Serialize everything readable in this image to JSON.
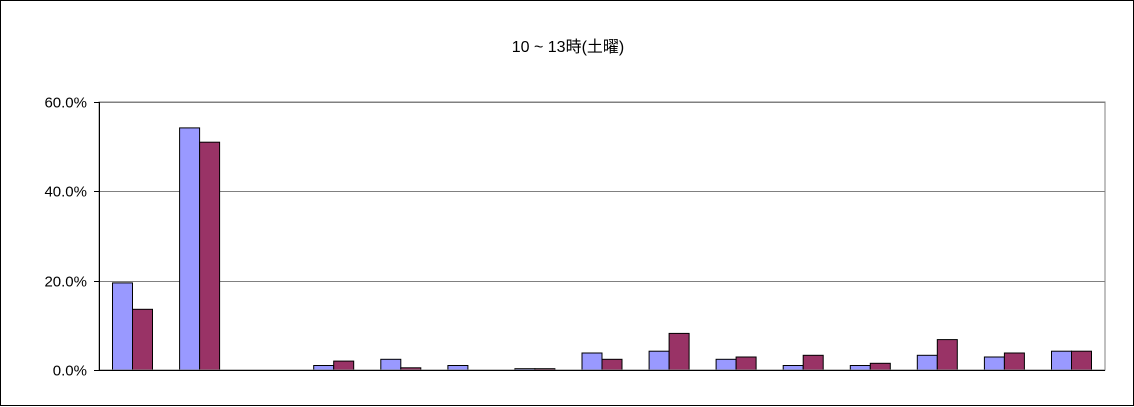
{
  "chart_data": {
    "type": "bar",
    "title": "10 ~ 13時(土曜)",
    "xlabel": "",
    "ylabel": "",
    "ylim": [
      0,
      60
    ],
    "yticks": [
      "0.0%",
      "20.0%",
      "40.0%",
      "60.0%"
    ],
    "ytick_values": [
      0,
      20,
      40,
      60
    ],
    "grid": true,
    "legend": "none",
    "categories": [
      "",
      "",
      "",
      "",
      "",
      "",
      "",
      "",
      "",
      "",
      "",
      "",
      "",
      "",
      ""
    ],
    "series": [
      {
        "color": "#9999FF",
        "values": [
          19.5,
          54.2,
          0,
          1.0,
          2.4,
          1.0,
          0.3,
          3.8,
          4.2,
          2.4,
          1.0,
          1.0,
          3.3,
          2.9,
          4.2
        ]
      },
      {
        "color": "#993366",
        "values": [
          13.6,
          51.0,
          0,
          2.0,
          0.5,
          0,
          0.3,
          2.4,
          8.2,
          2.9,
          3.3,
          1.5,
          6.8,
          3.8,
          4.2
        ]
      }
    ]
  }
}
